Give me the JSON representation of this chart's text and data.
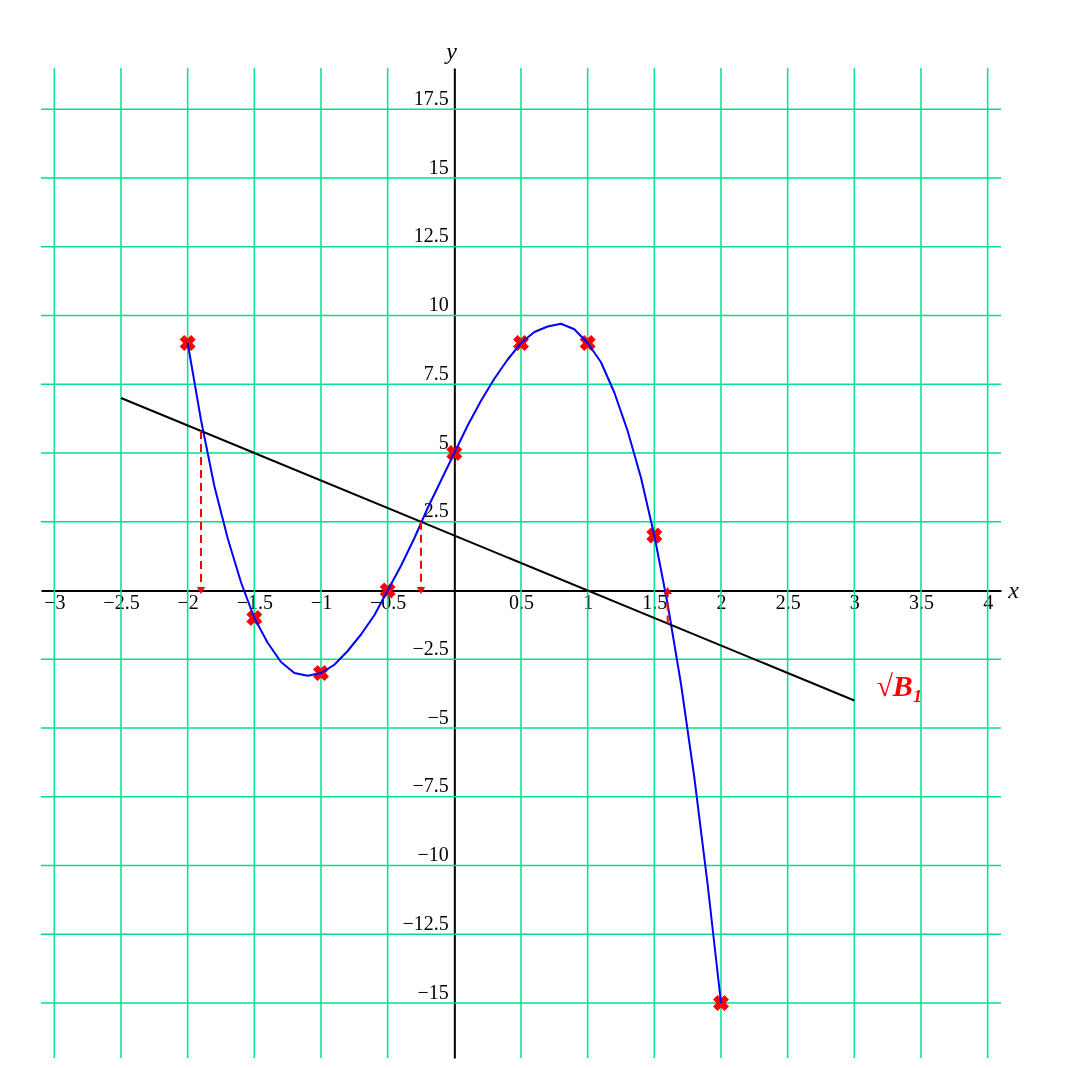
{
  "chart_data": {
    "type": "line",
    "xlabel": "x",
    "ylabel": "y",
    "xlim": [
      -3.1,
      4.1
    ],
    "ylim": [
      -17,
      19
    ],
    "grid": true,
    "xticks": [
      {
        "value": -3,
        "label": "−3"
      },
      {
        "value": -2.5,
        "label": "−2.5"
      },
      {
        "value": -2,
        "label": "−2"
      },
      {
        "value": -1.5,
        "label": "−1.5"
      },
      {
        "value": -1,
        "label": "−1"
      },
      {
        "value": -0.5,
        "label": "−0.5"
      },
      0.5,
      1,
      1.5,
      2,
      2.5,
      3,
      3.5,
      4
    ],
    "yticks": [
      {
        "value": -15,
        "label": "−15"
      },
      {
        "value": -12.5,
        "label": "−12.5"
      },
      {
        "value": -10,
        "label": "−10"
      },
      {
        "value": -7.5,
        "label": "−7.5"
      },
      {
        "value": -5,
        "label": "−5"
      },
      {
        "value": -2.5,
        "label": "−2.5"
      },
      2.5,
      5,
      7.5,
      10,
      12.5,
      15,
      17.5
    ],
    "annotations": [
      "√B₁"
    ],
    "series": [
      {
        "type": "scatter",
        "color": "#ff0000",
        "marker": "cross",
        "x": [
          -2,
          -1.5,
          -1,
          -0.5,
          0,
          0.5,
          1,
          1.5,
          2
        ],
        "values": [
          9,
          -1,
          -3,
          0,
          5,
          9,
          9,
          2,
          -15
        ]
      },
      {
        "line_style": "solid",
        "color": "#0000ff",
        "x": [
          -2,
          -1.9,
          -1.8,
          -1.7,
          -1.6,
          -1.5,
          -1.4,
          -1.3,
          -1.2,
          -1.1,
          -1,
          -0.9,
          -0.8,
          -0.7,
          -0.6,
          -0.5,
          -0.4,
          -0.3,
          -0.2,
          -0.1,
          0,
          0.1,
          0.2,
          0.3,
          0.4,
          0.5,
          0.6,
          0.7,
          0.8,
          0.9,
          1,
          1.1,
          1.2,
          1.3,
          1.4,
          1.5,
          1.6,
          1.7,
          1.8,
          1.9,
          2
        ],
        "values": [
          9,
          6.2,
          3.8,
          1.9,
          0.3,
          -1,
          -1.9,
          -2.6,
          -3,
          -3.1,
          -3,
          -2.7,
          -2.2,
          -1.6,
          -0.9,
          0,
          0.9,
          1.9,
          3,
          4,
          5,
          6,
          6.9,
          7.7,
          8.4,
          9,
          9.4,
          9.6,
          9.7,
          9.5,
          9,
          8.3,
          7.2,
          5.8,
          4.1,
          2,
          -0.5,
          -3.4,
          -6.8,
          -10.7,
          -15
        ]
      },
      {
        "line_style": "solid",
        "color": "#000000",
        "x": [
          -2.5,
          3
        ],
        "values": [
          7,
          -4
        ]
      },
      {
        "color": "#ff0000",
        "line_style": "dashed",
        "marker": "triangle",
        "x": [
          -1.9,
          -1.9
        ],
        "values": [
          5.8,
          0
        ]
      },
      {
        "color": "#ff0000",
        "line_style": "dashed",
        "marker": "triangle",
        "x": [
          -0.25,
          -0.25
        ],
        "values": [
          2.5,
          0
        ]
      },
      {
        "color": "#ff0000",
        "line_style": "dashed",
        "marker": "triangle",
        "x": [
          1.6,
          1.6
        ],
        "values": [
          -1.2,
          0
        ]
      }
    ]
  }
}
